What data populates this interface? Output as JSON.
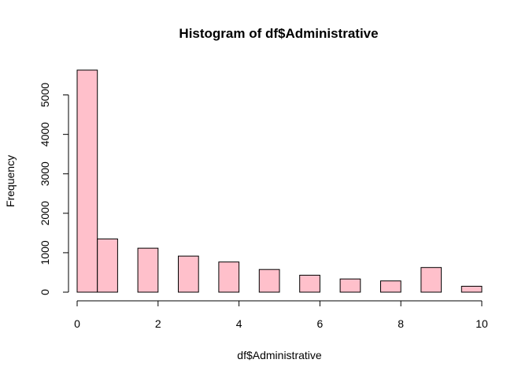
{
  "chart_data": {
    "type": "bar",
    "title": "Histogram of df$Administrative",
    "xlabel": "df$Administrative",
    "ylabel": "Frequency",
    "xlim": [
      0,
      10
    ],
    "ylim": [
      0,
      5630
    ],
    "x_ticks": [
      0,
      2,
      4,
      6,
      8,
      10
    ],
    "y_ticks": [
      0,
      1000,
      2000,
      3000,
      4000,
      5000
    ],
    "bar_color": "#ffc0cb",
    "bins": [
      {
        "start": 0.0,
        "end": 0.5,
        "value": 5630
      },
      {
        "start": 0.5,
        "end": 1.0,
        "value": 1350
      },
      {
        "start": 1.5,
        "end": 2.0,
        "value": 1115
      },
      {
        "start": 2.5,
        "end": 3.0,
        "value": 915
      },
      {
        "start": 3.5,
        "end": 4.0,
        "value": 765
      },
      {
        "start": 4.5,
        "end": 5.0,
        "value": 575
      },
      {
        "start": 5.5,
        "end": 6.0,
        "value": 430
      },
      {
        "start": 6.5,
        "end": 7.0,
        "value": 335
      },
      {
        "start": 7.5,
        "end": 8.0,
        "value": 285
      },
      {
        "start": 8.5,
        "end": 9.0,
        "value": 625
      },
      {
        "start": 9.5,
        "end": 10.0,
        "value": 150
      }
    ]
  }
}
